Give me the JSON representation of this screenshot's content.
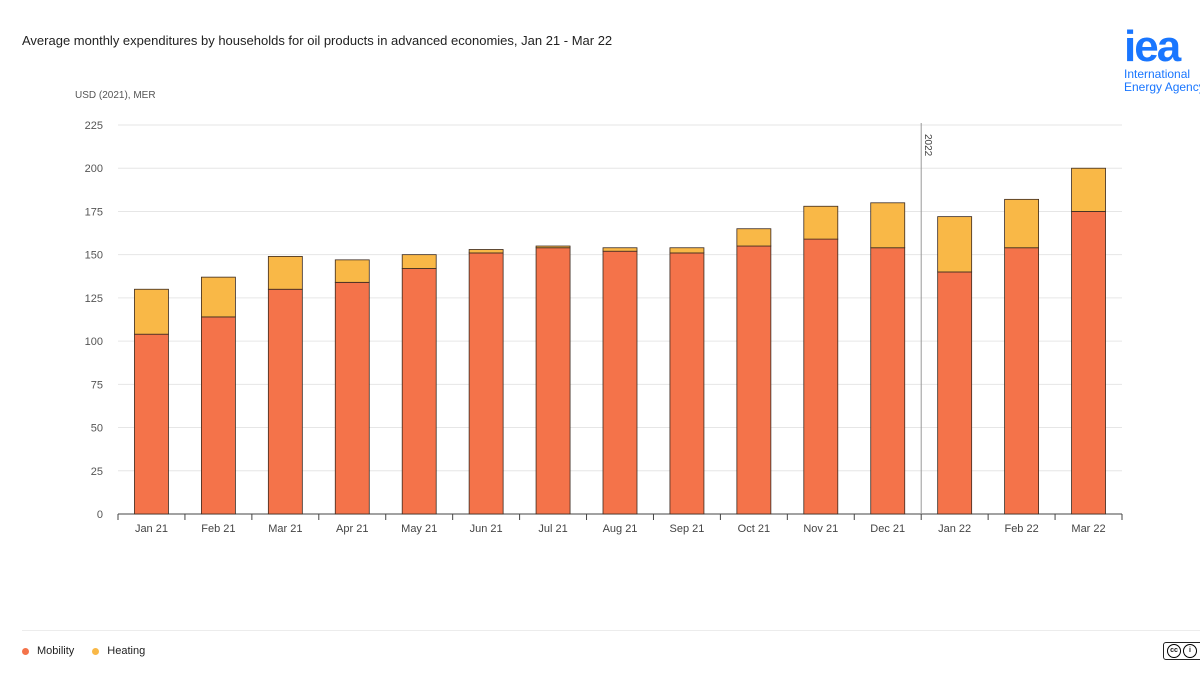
{
  "title": "Average monthly expenditures by households for oil products in advanced economies, Jan 21 - Mar 22",
  "logo": {
    "mark": "iea",
    "line1": "International",
    "line2": "Energy Agency"
  },
  "license_icon": "cc-by-icon",
  "chart_data": {
    "type": "bar",
    "stacked": true,
    "title": "Average monthly expenditures by households for oil products in advanced economies, Jan 21 - Mar 22",
    "ylabel": "USD (2021), MER",
    "xlabel": "",
    "ylim": [
      0,
      225
    ],
    "yticks": [
      0,
      25,
      50,
      75,
      100,
      125,
      150,
      175,
      200,
      225
    ],
    "grid": true,
    "legend_position": "bottom-left",
    "categories": [
      "Jan 21",
      "Feb 21",
      "Mar 21",
      "Apr 21",
      "May 21",
      "Jun 21",
      "Jul 21",
      "Aug 21",
      "Sep 21",
      "Oct 21",
      "Nov 21",
      "Dec 21",
      "Jan 22",
      "Feb 22",
      "Mar 22"
    ],
    "series": [
      {
        "name": "Mobility",
        "color": "#f4734a",
        "values": [
          104,
          114,
          130,
          134,
          142,
          151,
          154,
          152,
          151,
          155,
          159,
          154,
          140,
          154,
          175
        ]
      },
      {
        "name": "Heating",
        "color": "#f9b847",
        "values": [
          26,
          23,
          19,
          13,
          8,
          2,
          1,
          2,
          3,
          10,
          19,
          26,
          32,
          28,
          25
        ]
      }
    ],
    "annotations": [
      {
        "text": "2022",
        "between": [
          "Dec 21",
          "Jan 22"
        ]
      }
    ]
  }
}
